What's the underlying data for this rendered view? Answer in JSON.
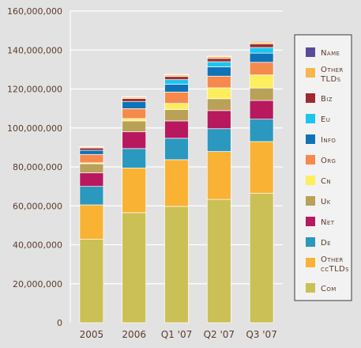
{
  "chart_data": {
    "type": "bar",
    "stacked": true,
    "categories": [
      "2005",
      "2006",
      "Q1 '07",
      "Q2 '07",
      "Q3 '07"
    ],
    "ylim": [
      0,
      160000000
    ],
    "yticks": [
      0,
      20000000,
      40000000,
      60000000,
      80000000,
      100000000,
      120000000,
      140000000,
      160000000
    ],
    "ytick_labels": [
      "0",
      "20,000,000",
      "40,000,000",
      "60,000,000",
      "80,000,000",
      "100,000,000",
      "120,000,000",
      "140,000,000",
      "160,000,000"
    ],
    "grid": "horizontal",
    "legend_position": "right",
    "series": [
      {
        "name": "Com",
        "color": "#cbc055",
        "values": [
          42800000,
          56500000,
          59700000,
          63300000,
          66500000
        ]
      },
      {
        "name": "Other ccTLDs",
        "color": "#f9b234",
        "values": [
          17700000,
          22900000,
          24000000,
          24600000,
          26500000
        ]
      },
      {
        "name": "De",
        "color": "#2b98bf",
        "values": [
          9500000,
          10000000,
          11000000,
          11700000,
          11500000
        ]
      },
      {
        "name": "Net",
        "color": "#b8185e",
        "values": [
          7000000,
          8600000,
          8900000,
          9300000,
          9600000
        ]
      },
      {
        "name": "Uk",
        "color": "#b9a158",
        "values": [
          4600000,
          5600000,
          5800000,
          6100000,
          6400000
        ]
      },
      {
        "name": "Cn",
        "color": "#fdee5d",
        "values": [
          500000,
          1200000,
          3200000,
          5600000,
          6700000
        ]
      },
      {
        "name": "Org",
        "color": "#f68a4d",
        "values": [
          4300000,
          5100000,
          5800000,
          6000000,
          6500000
        ]
      },
      {
        "name": "Info",
        "color": "#0f73b6",
        "values": [
          2100000,
          3700000,
          4000000,
          4800000,
          4700000
        ]
      },
      {
        "name": "Eu",
        "color": "#1ec4ee",
        "values": [
          0,
          0,
          2400000,
          2600000,
          2900000
        ]
      },
      {
        "name": "Biz",
        "color": "#9e2a2f",
        "values": [
          1200000,
          1500000,
          1600000,
          1700000,
          1800000
        ]
      },
      {
        "name": "Other TLDs",
        "color": "#fab64a",
        "values": [
          500000,
          700000,
          800000,
          900000,
          900000
        ]
      },
      {
        "name": "Name",
        "color": "#5b4a9b",
        "values": [
          200000,
          300000,
          300000,
          300000,
          400000
        ]
      }
    ]
  },
  "legend": {
    "items": [
      {
        "label": "Name",
        "color": "#5b4a9b"
      },
      {
        "label": "Other TLDs",
        "color": "#fab64a"
      },
      {
        "label": "Biz",
        "color": "#9e2a2f"
      },
      {
        "label": "Eu",
        "color": "#1ec4ee"
      },
      {
        "label": "Info",
        "color": "#0f73b6"
      },
      {
        "label": "Org",
        "color": "#f68a4d"
      },
      {
        "label": "Cn",
        "color": "#fdee5d"
      },
      {
        "label": "Uk",
        "color": "#b9a158"
      },
      {
        "label": "Net",
        "color": "#b8185e"
      },
      {
        "label": "De",
        "color": "#2b98bf"
      },
      {
        "label": "Other ccTLDs",
        "color": "#f9b234"
      },
      {
        "label": "Com",
        "color": "#cbc055"
      }
    ]
  },
  "style": {
    "background": "#e2e2e2",
    "text_color": "#5d3b2b",
    "grid_color": "#ffffff",
    "legend_border": "#3a3a3a"
  }
}
